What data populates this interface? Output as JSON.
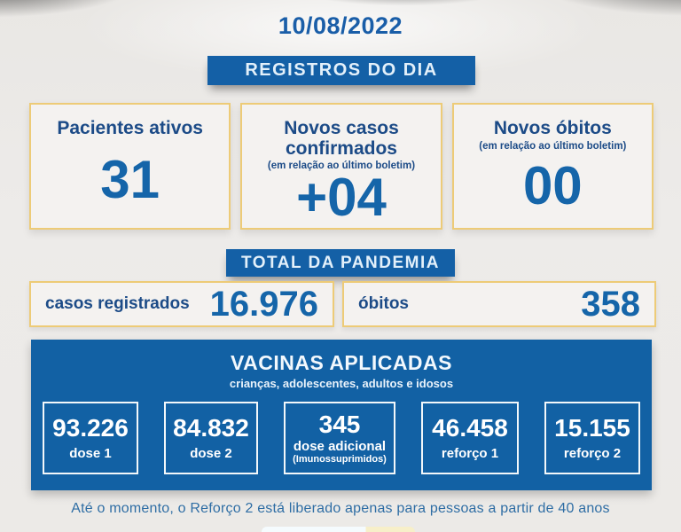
{
  "date": "10/08/2022",
  "daily": {
    "banner": "REGISTROS DO DIA",
    "cards": [
      {
        "title": "Pacientes ativos",
        "subtitle": "",
        "value": "31"
      },
      {
        "title": "Novos casos confirmados",
        "subtitle": "(em relação ao último boletim)",
        "value": "+04"
      },
      {
        "title": "Novos óbitos",
        "subtitle": "(em relação ao último boletim)",
        "value": "00"
      }
    ]
  },
  "pandemic_total": {
    "banner": "TOTAL DA PANDEMIA",
    "cards": [
      {
        "label": "casos registrados",
        "value": "16.976"
      },
      {
        "label": "óbitos",
        "value": "358"
      }
    ]
  },
  "vaccines": {
    "title": "VACINAS APLICADAS",
    "subtitle": "crianças, adolescentes, adultos e idosos",
    "cards": [
      {
        "value": "93.226",
        "label": "dose 1",
        "sublabel": ""
      },
      {
        "value": "84.832",
        "label": "dose 2",
        "sublabel": ""
      },
      {
        "value": "345",
        "label": "dose adicional",
        "sublabel": "(Imunossuprimidos)"
      },
      {
        "value": "46.458",
        "label": "reforço 1",
        "sublabel": ""
      },
      {
        "value": "15.155",
        "label": "reforço 2",
        "sublabel": ""
      }
    ]
  },
  "footnote": "Até o momento, o Reforço 2 está liberado apenas para pessoas a partir de 40 anos",
  "colors": {
    "banner_blue": "#1460a6",
    "panel_blue": "#1261a4",
    "number_blue": "#1565a9",
    "title_blue": "#1c4b87",
    "gold_border": "#edcb77",
    "note_blue": "#2e6da4"
  }
}
